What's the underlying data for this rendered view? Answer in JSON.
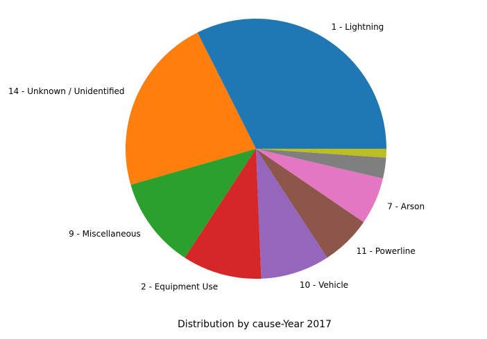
{
  "chart_data": {
    "type": "pie",
    "title": "Distribution by cause-Year 2017",
    "slices": [
      {
        "label": "1 - Lightning",
        "value": 32.6,
        "color": "#1f77b4"
      },
      {
        "label": "14 - Unknown / Unidentified",
        "value": 22.2,
        "color": "#ff7f0e"
      },
      {
        "label": "9 - Miscellaneous",
        "value": 11.4,
        "color": "#2ca02c"
      },
      {
        "label": "2 - Equipment Use",
        "value": 9.9,
        "color": "#d62728"
      },
      {
        "label": "10 - Vehicle",
        "value": 8.6,
        "color": "#9467bd"
      },
      {
        "label": "11 - Powerline",
        "value": 6.3,
        "color": "#8c564b"
      },
      {
        "label": "7 - Arson",
        "value": 5.9,
        "color": "#e377c2"
      },
      {
        "label": "",
        "value": 2.6,
        "color": "#7f7f7f"
      },
      {
        "label": "",
        "value": 1.1,
        "color": "#bcbd22"
      }
    ]
  }
}
